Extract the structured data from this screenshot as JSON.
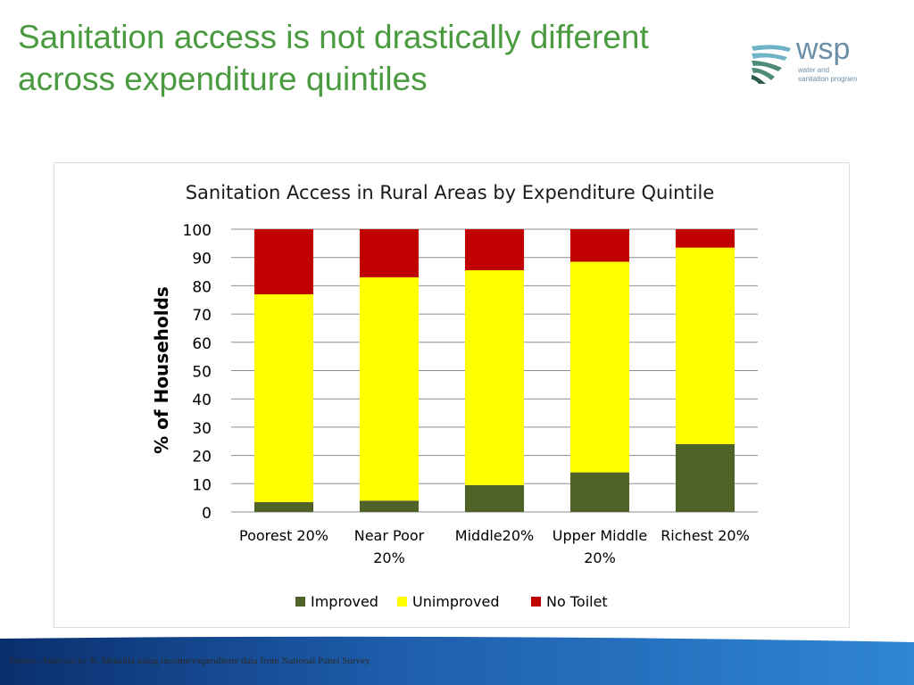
{
  "slide": {
    "title_line1": "Sanitation access is not drastically different",
    "title_line2": "across expenditure quintiles",
    "source": "Source: Analysis by K. Mdadila using income/expenditure data from National Panel Survey"
  },
  "logo": {
    "word": "wsp",
    "sub_line1": "water and",
    "sub_line2": "sanitation program",
    "colors": {
      "dark": "#2e5b4a",
      "mid": "#4d8a78",
      "light": "#6fb3c9"
    }
  },
  "chart_data": {
    "type": "bar",
    "stacked": true,
    "title": "Sanitation Access in Rural Areas by Expenditure Quintile",
    "ylabel": "% of Households",
    "xlabel": "",
    "ylim": [
      0,
      100
    ],
    "yticks": [
      0,
      10,
      20,
      30,
      40,
      50,
      60,
      70,
      80,
      90,
      100
    ],
    "grid": true,
    "legend_position": "bottom",
    "categories": [
      [
        "Poorest 20%"
      ],
      [
        "Near Poor",
        "20%"
      ],
      [
        "Middle20%"
      ],
      [
        "Upper Middle",
        "20%"
      ],
      [
        "Richest 20%"
      ]
    ],
    "series": [
      {
        "name": "Improved",
        "color": "#4f6228",
        "values": [
          3.5,
          4,
          9.5,
          14,
          24
        ]
      },
      {
        "name": "Unimproved",
        "color": "#ffff00",
        "values": [
          73.5,
          79,
          76,
          74.5,
          69.5
        ]
      },
      {
        "name": "No Toilet",
        "color": "#c00000",
        "values": [
          23,
          17,
          14.5,
          11.5,
          6.5
        ]
      }
    ]
  }
}
